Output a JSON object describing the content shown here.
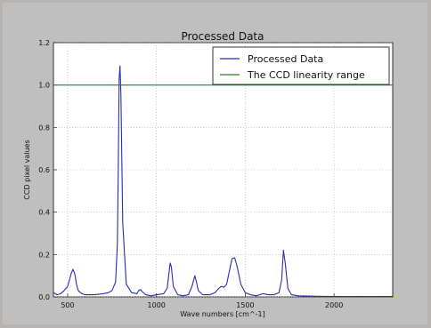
{
  "chart_data": {
    "type": "line",
    "title": "Processed Data",
    "xlabel": "Wave numbers [cm^-1]",
    "ylabel": "CCD pixel values",
    "xlim": [
      420,
      2330
    ],
    "ylim": [
      0,
      1.2
    ],
    "xticks": [
      500,
      1000,
      1500,
      2000
    ],
    "xtick_labels": [
      "500",
      "1000",
      "1500",
      "2000"
    ],
    "yticks": [
      0.0,
      0.2,
      0.4,
      0.6,
      0.8,
      1.0,
      1.2
    ],
    "ytick_labels": [
      "0.0",
      "0.2",
      "0.4",
      "0.6",
      "0.8",
      "1.0",
      "1.2"
    ],
    "grid": true,
    "legend_position": "top-right",
    "series": [
      {
        "name": "Processed Data",
        "color": "#2b2bb5",
        "x": [
          420,
          440,
          460,
          480,
          500,
          520,
          530,
          540,
          550,
          560,
          580,
          600,
          650,
          700,
          730,
          750,
          770,
          780,
          785,
          790,
          795,
          800,
          810,
          830,
          860,
          890,
          900,
          910,
          920,
          940,
          970,
          1000,
          1040,
          1060,
          1070,
          1077,
          1084,
          1095,
          1120,
          1150,
          1180,
          1200,
          1216,
          1225,
          1235,
          1260,
          1300,
          1330,
          1350,
          1365,
          1380,
          1395,
          1410,
          1425,
          1440,
          1455,
          1475,
          1500,
          1530,
          1560,
          1600,
          1630,
          1660,
          1690,
          1705,
          1715,
          1725,
          1740,
          1760,
          1800,
          1900,
          2000,
          2100,
          2200,
          2300,
          2330
        ],
        "y": [
          0.02,
          0.01,
          0.015,
          0.03,
          0.05,
          0.11,
          0.13,
          0.11,
          0.06,
          0.03,
          0.015,
          0.01,
          0.01,
          0.015,
          0.02,
          0.03,
          0.07,
          0.25,
          0.6,
          1.03,
          1.09,
          0.95,
          0.35,
          0.06,
          0.02,
          0.015,
          0.03,
          0.035,
          0.025,
          0.01,
          0.005,
          0.01,
          0.015,
          0.04,
          0.11,
          0.16,
          0.14,
          0.05,
          0.01,
          0.005,
          0.01,
          0.05,
          0.1,
          0.07,
          0.03,
          0.01,
          0.01,
          0.02,
          0.04,
          0.05,
          0.045,
          0.06,
          0.12,
          0.18,
          0.185,
          0.14,
          0.06,
          0.02,
          0.01,
          0.005,
          0.015,
          0.01,
          0.01,
          0.02,
          0.08,
          0.22,
          0.16,
          0.04,
          0.01,
          0.005,
          0.003,
          0.002,
          0.002,
          0.002,
          0.002,
          0.002
        ]
      },
      {
        "name": "The CCD linearity range",
        "color": "#2e7d32",
        "x": [
          420,
          2330
        ],
        "y": [
          1.0,
          1.0
        ]
      }
    ]
  }
}
